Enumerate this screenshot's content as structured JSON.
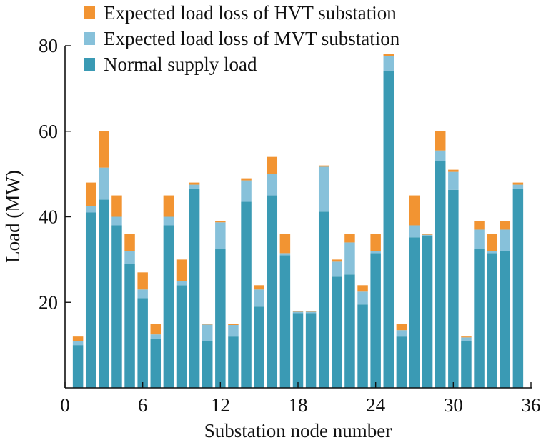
{
  "chart_data": {
    "type": "bar",
    "stacked": true,
    "x": [
      1,
      2,
      3,
      4,
      5,
      6,
      7,
      8,
      9,
      10,
      11,
      12,
      13,
      14,
      15,
      16,
      17,
      18,
      19,
      20,
      21,
      22,
      23,
      24,
      25,
      26,
      27,
      28,
      29,
      30,
      31,
      32,
      33,
      34,
      35
    ],
    "series": [
      {
        "name": "Normal supply load",
        "color": "#3a9ab4",
        "values": [
          10,
          41,
          44,
          38,
          29,
          21,
          11.5,
          38,
          24,
          46.5,
          11,
          32.5,
          12,
          43.5,
          19,
          45,
          31,
          17.5,
          17.5,
          41.2,
          26,
          26.5,
          19.5,
          31.5,
          74.2,
          12,
          35.2,
          35.5,
          53,
          46.3,
          11,
          32.5,
          31.5,
          32,
          46.5
        ]
      },
      {
        "name": "Expected load loss of MVT substation",
        "color": "#87c1da",
        "values": [
          1,
          1.5,
          7.5,
          2,
          3,
          2,
          1,
          2,
          1,
          1,
          3.8,
          6.2,
          2.7,
          5,
          4,
          5,
          0.5,
          0.3,
          0.3,
          10.5,
          3.5,
          7.5,
          3,
          0.5,
          3.3,
          1.5,
          2.8,
          0.3,
          2.5,
          4.2,
          0.8,
          4.5,
          0.5,
          5,
          1
        ]
      },
      {
        "name": "Expected load loss of HVT substation",
        "color": "#f29432",
        "values": [
          1,
          5.5,
          8.5,
          5,
          4,
          4,
          2.5,
          5,
          5,
          0.5,
          0.2,
          0.3,
          0.3,
          0.5,
          1,
          4,
          4.5,
          0.2,
          0.2,
          0.3,
          0.5,
          2,
          1.5,
          4,
          0.5,
          1.5,
          7,
          0.2,
          4.5,
          0.5,
          0.2,
          2,
          4,
          2,
          0.5
        ]
      }
    ],
    "xlabel": "Substation node number",
    "ylabel": "Load (MW)",
    "xlim": [
      0,
      36
    ],
    "ylim": [
      0,
      80
    ],
    "xticks": [
      0,
      6,
      12,
      18,
      24,
      30,
      36
    ],
    "yticks": [
      20,
      40,
      60,
      80
    ],
    "grid": false,
    "legend_position": "top-left"
  }
}
